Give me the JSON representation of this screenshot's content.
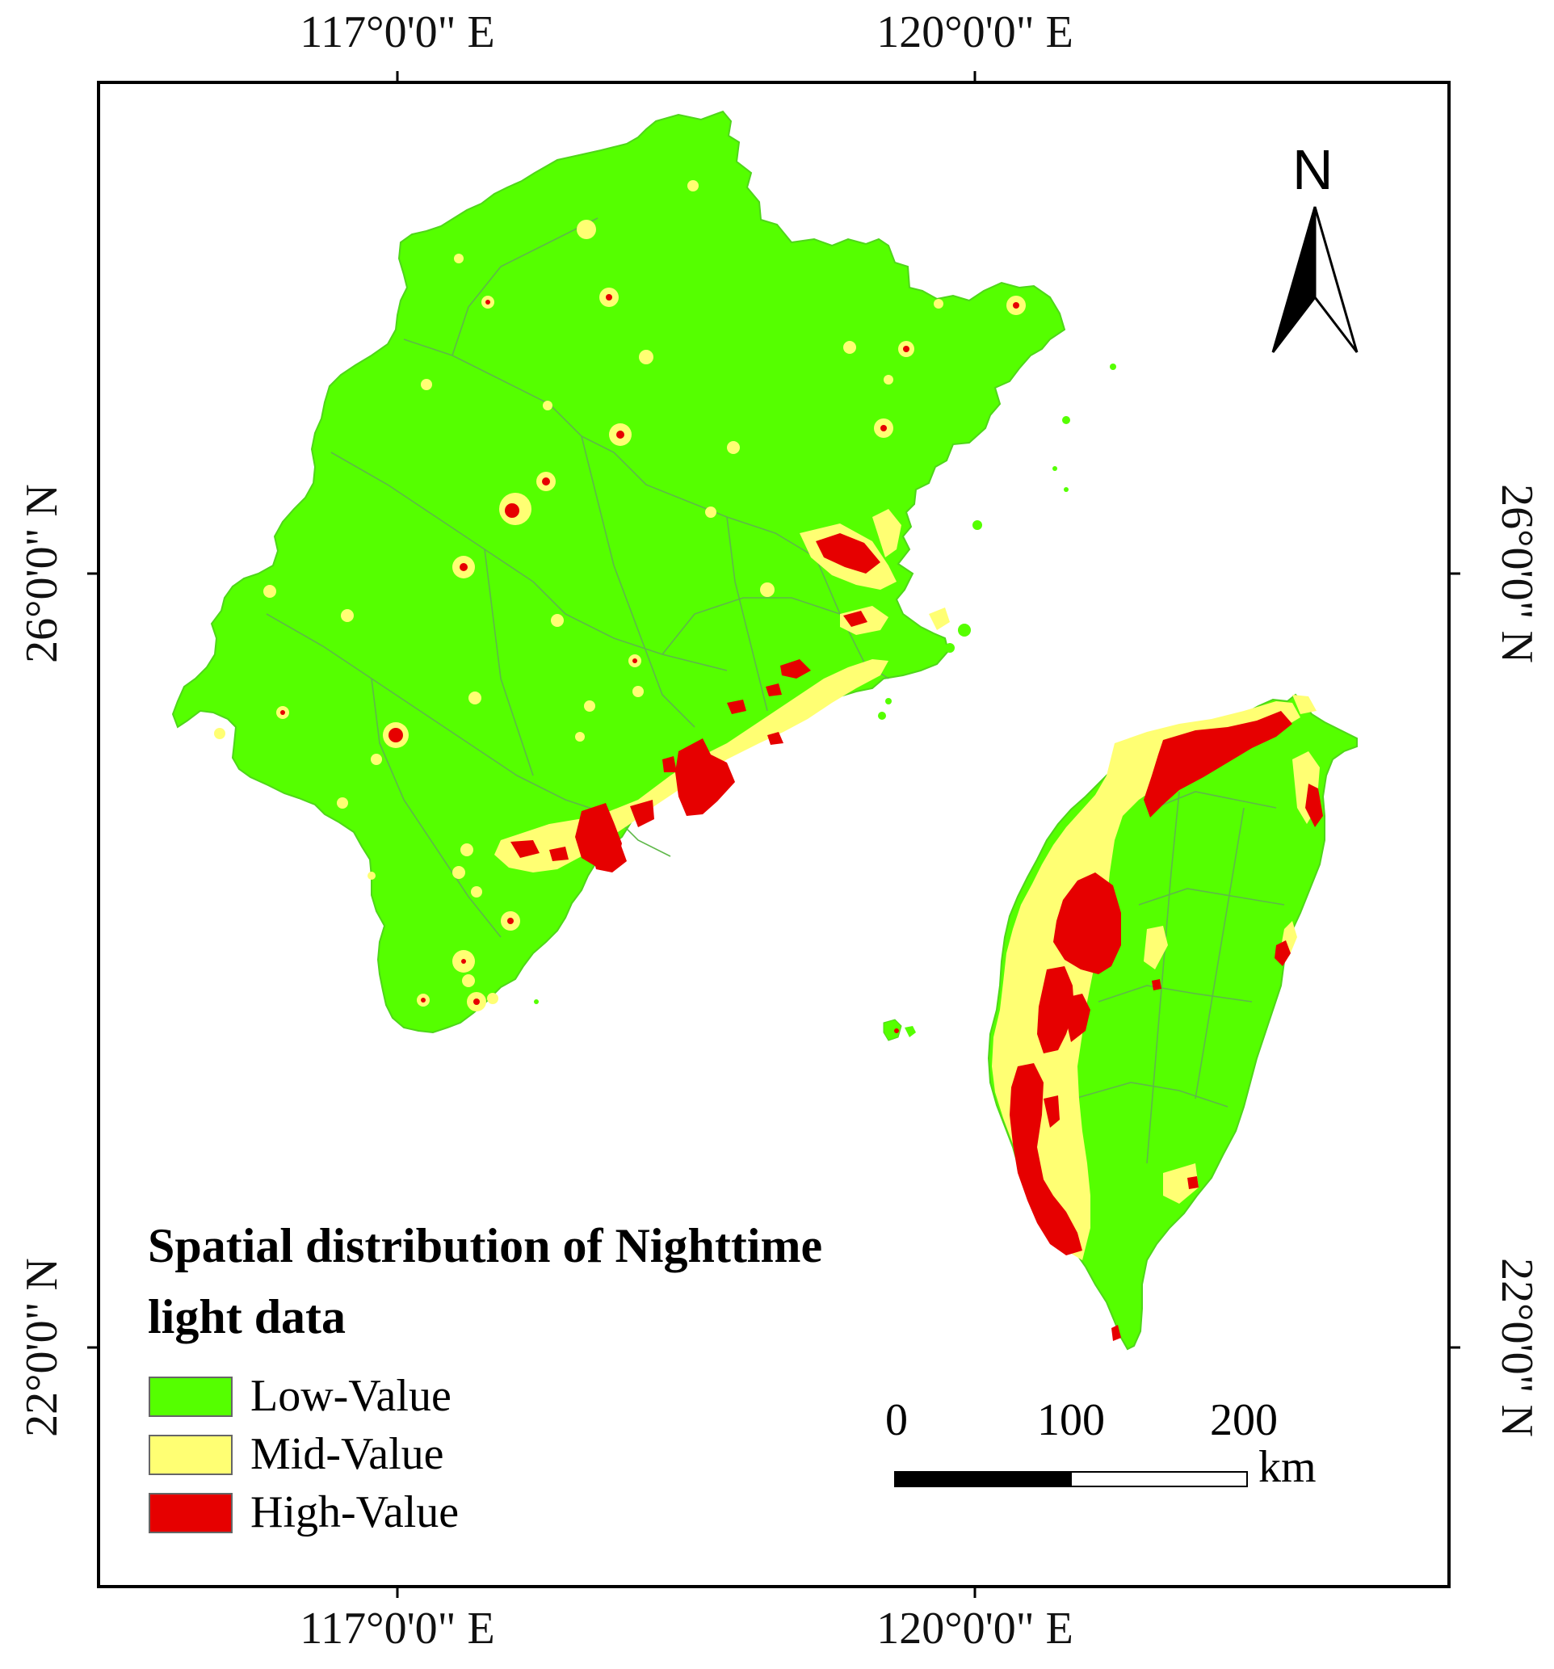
{
  "map": {
    "title_lines": [
      "Spatial distribution of Nighttime",
      "light data"
    ],
    "longitude_labels": [
      "117°0'0\" E",
      "120°0'0\" E"
    ],
    "latitude_labels": [
      "26°0'0\" N",
      "22°0'0\" N"
    ],
    "legend": [
      {
        "label": "Low-Value",
        "color": "#55ff00"
      },
      {
        "label": "Mid-Value",
        "color": "#ffff73"
      },
      {
        "label": "High-Value",
        "color": "#e60000"
      }
    ],
    "scale_bar": {
      "ticks": [
        "0",
        "100",
        "200"
      ],
      "unit": "km"
    },
    "north_arrow": {
      "label": "N"
    },
    "colors": {
      "frame": "#000000",
      "admin_boundary": "#5fb84a",
      "sea": "#ffffff"
    }
  }
}
